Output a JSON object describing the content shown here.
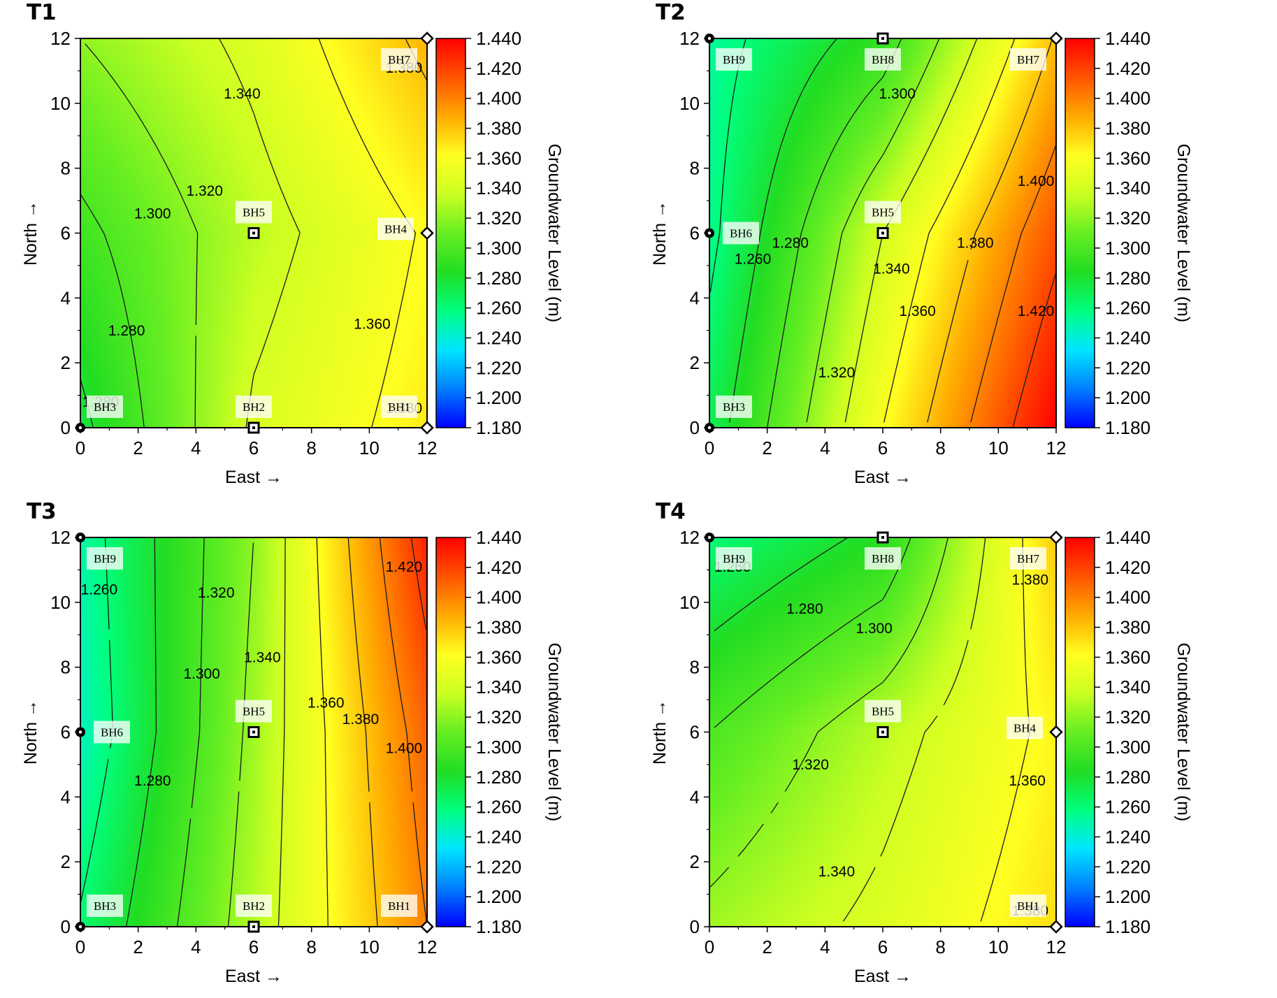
{
  "colors": {
    "scale": [
      "#0000ff",
      "#0080ff",
      "#00e5ff",
      "#00ff80",
      "#22dd22",
      "#66ee22",
      "#ccff22",
      "#ffff20",
      "#ffaa00",
      "#ff5500",
      "#ff0000"
    ],
    "contour_line": "#1a1a1a",
    "label_box": "#ffffff"
  },
  "chart_data": [
    {
      "panel": "T1",
      "type": "heatmap",
      "title": "T1",
      "xlabel": "East →",
      "ylabel": "North →",
      "colorbar_label": "Groundwater Level (m)",
      "xlim": [
        0,
        12
      ],
      "ylim": [
        0,
        12
      ],
      "clim": [
        1.18,
        1.44
      ],
      "x_ticks": [
        "0",
        "2",
        "4",
        "6",
        "8",
        "10",
        "12"
      ],
      "y_ticks": [
        "0",
        "2",
        "4",
        "6",
        "8",
        "10",
        "12"
      ],
      "colorbar_ticks": [
        "1.180",
        "1.200",
        "1.220",
        "1.240",
        "1.260",
        "1.280",
        "1.300",
        "1.320",
        "1.340",
        "1.360",
        "1.380",
        "1.400",
        "1.420",
        "1.440"
      ],
      "field_grid": [
        [
          1.275,
          1.343,
          1.368
        ],
        [
          1.295,
          1.332,
          1.362
        ],
        [
          1.32,
          1.345,
          1.385
        ]
      ],
      "boreholes": [
        {
          "name": "BH3",
          "x": 0,
          "y": 0,
          "marker": "circle",
          "level": 1.275
        },
        {
          "name": "BH2",
          "x": 6,
          "y": 0,
          "marker": "square",
          "level": 1.343
        },
        {
          "name": "BH1",
          "x": 12,
          "y": 0,
          "marker": "diamond",
          "level": 1.368
        },
        {
          "name": "BH5",
          "x": 6,
          "y": 6,
          "marker": "square",
          "level": 1.332
        },
        {
          "name": "BH4",
          "x": 12,
          "y": 6,
          "marker": "diamond",
          "level": 1.362
        },
        {
          "name": "BH7",
          "x": 12,
          "y": 12,
          "marker": "diamond",
          "level": 1.385
        }
      ],
      "contour_labels": [
        {
          "text": "1.280",
          "x": 1.6,
          "y": 3.0
        },
        {
          "text": "1.280",
          "x": 0.7,
          "y": 0.8
        },
        {
          "text": "1.300",
          "x": 2.5,
          "y": 6.6
        },
        {
          "text": "1.320",
          "x": 4.3,
          "y": 7.3
        },
        {
          "text": "1.340",
          "x": 5.6,
          "y": 10.3
        },
        {
          "text": "1.360",
          "x": 10.1,
          "y": 3.2
        },
        {
          "text": "1.380",
          "x": 11.2,
          "y": 11.1
        },
        {
          "text": "1.380",
          "x": 11.2,
          "y": 0.6
        }
      ]
    },
    {
      "panel": "T2",
      "type": "heatmap",
      "title": "T2",
      "xlabel": "East →",
      "ylabel": "North →",
      "colorbar_label": "Groundwater Level (m)",
      "xlim": [
        0,
        12
      ],
      "ylim": [
        0,
        12
      ],
      "clim": [
        1.18,
        1.44
      ],
      "x_ticks": [
        "0",
        "2",
        "4",
        "6",
        "8",
        "10",
        "12"
      ],
      "y_ticks": [
        "0",
        "2",
        "4",
        "6",
        "8",
        "10",
        "12"
      ],
      "colorbar_ticks": [
        "1.180",
        "1.200",
        "1.220",
        "1.240",
        "1.260",
        "1.280",
        "1.300",
        "1.320",
        "1.340",
        "1.360",
        "1.380",
        "1.400",
        "1.420",
        "1.440"
      ],
      "field_grid": [
        [
          1.27,
          1.36,
          1.44
        ],
        [
          1.255,
          1.34,
          1.415
        ],
        [
          1.252,
          1.29,
          1.382
        ]
      ],
      "boreholes": [
        {
          "name": "BH3",
          "x": 0,
          "y": 0,
          "marker": "circle",
          "level": 1.27
        },
        {
          "name": "BH6",
          "x": 0,
          "y": 6,
          "marker": "circle",
          "level": 1.255
        },
        {
          "name": "BH5",
          "x": 6,
          "y": 6,
          "marker": "square",
          "level": 1.34
        },
        {
          "name": "BH9",
          "x": 0,
          "y": 12,
          "marker": "circle",
          "level": 1.252
        },
        {
          "name": "BH8",
          "x": 6,
          "y": 12,
          "marker": "square",
          "level": 1.29
        },
        {
          "name": "BH7",
          "x": 12,
          "y": 12,
          "marker": "diamond",
          "level": 1.382
        }
      ],
      "contour_labels": [
        {
          "text": "1.260",
          "x": 1.5,
          "y": 5.2
        },
        {
          "text": "1.280",
          "x": 2.8,
          "y": 5.7
        },
        {
          "text": "1.300",
          "x": 6.5,
          "y": 10.3
        },
        {
          "text": "1.320",
          "x": 4.4,
          "y": 1.7
        },
        {
          "text": "1.340",
          "x": 6.3,
          "y": 4.9
        },
        {
          "text": "1.360",
          "x": 7.2,
          "y": 3.6
        },
        {
          "text": "1.380",
          "x": 9.2,
          "y": 5.7
        },
        {
          "text": "1.400",
          "x": 11.3,
          "y": 7.6
        },
        {
          "text": "1.420",
          "x": 11.3,
          "y": 3.6
        }
      ]
    },
    {
      "panel": "T3",
      "type": "heatmap",
      "title": "T3",
      "xlabel": "East →",
      "ylabel": "North →",
      "colorbar_label": "Groundwater Level (m)",
      "xlim": [
        0,
        12
      ],
      "ylim": [
        0,
        12
      ],
      "clim": [
        1.18,
        1.44
      ],
      "x_ticks": [
        "0",
        "2",
        "4",
        "6",
        "8",
        "10",
        "12"
      ],
      "y_ticks": [
        "0",
        "2",
        "4",
        "6",
        "8",
        "10",
        "12"
      ],
      "colorbar_ticks": [
        "1.180",
        "1.200",
        "1.220",
        "1.240",
        "1.260",
        "1.280",
        "1.300",
        "1.320",
        "1.340",
        "1.360",
        "1.380",
        "1.400",
        "1.420",
        "1.440"
      ],
      "field_grid": [
        [
          1.262,
          1.33,
          1.4
        ],
        [
          1.245,
          1.325,
          1.41
        ],
        [
          1.25,
          1.32,
          1.43
        ]
      ],
      "boreholes": [
        {
          "name": "BH3",
          "x": 0,
          "y": 0,
          "marker": "circle",
          "level": 1.262
        },
        {
          "name": "BH2",
          "x": 6,
          "y": 0,
          "marker": "square",
          "level": 1.33
        },
        {
          "name": "BH1",
          "x": 12,
          "y": 0,
          "marker": "diamond",
          "level": 1.4
        },
        {
          "name": "BH6",
          "x": 0,
          "y": 6,
          "marker": "circle",
          "level": 1.245
        },
        {
          "name": "BH5",
          "x": 6,
          "y": 6,
          "marker": "square",
          "level": 1.325
        },
        {
          "name": "BH9",
          "x": 0,
          "y": 12,
          "marker": "circle",
          "level": 1.25
        }
      ],
      "contour_labels": [
        {
          "text": "1.260",
          "x": 0.65,
          "y": 10.4
        },
        {
          "text": "1.280",
          "x": 2.5,
          "y": 4.5
        },
        {
          "text": "1.300",
          "x": 4.2,
          "y": 7.8
        },
        {
          "text": "1.320",
          "x": 4.7,
          "y": 10.3
        },
        {
          "text": "1.340",
          "x": 6.3,
          "y": 8.3
        },
        {
          "text": "1.360",
          "x": 8.5,
          "y": 6.9
        },
        {
          "text": "1.380",
          "x": 9.7,
          "y": 6.4
        },
        {
          "text": "1.400",
          "x": 11.2,
          "y": 5.5
        },
        {
          "text": "1.420",
          "x": 11.2,
          "y": 11.1
        }
      ]
    },
    {
      "panel": "T4",
      "type": "heatmap",
      "title": "T4",
      "xlabel": "East →",
      "ylabel": "North →",
      "colorbar_label": "Groundwater Level (m)",
      "xlim": [
        0,
        12
      ],
      "ylim": [
        0,
        12
      ],
      "clim": [
        1.18,
        1.44
      ],
      "x_ticks": [
        "0",
        "2",
        "4",
        "6",
        "8",
        "10",
        "12"
      ],
      "y_ticks": [
        "0",
        "2",
        "4",
        "6",
        "8",
        "10",
        "12"
      ],
      "colorbar_ticks": [
        "1.180",
        "1.200",
        "1.220",
        "1.240",
        "1.260",
        "1.280",
        "1.300",
        "1.320",
        "1.340",
        "1.360",
        "1.380",
        "1.400",
        "1.420",
        "1.440"
      ],
      "field_grid": [
        [
          1.325,
          1.345,
          1.372
        ],
        [
          1.3,
          1.332,
          1.365
        ],
        [
          1.26,
          1.285,
          1.378
        ]
      ],
      "boreholes": [
        {
          "name": "BH1",
          "x": 12,
          "y": 0,
          "marker": "diamond",
          "level": 1.372
        },
        {
          "name": "BH5",
          "x": 6,
          "y": 6,
          "marker": "square",
          "level": 1.332
        },
        {
          "name": "BH4",
          "x": 12,
          "y": 6,
          "marker": "diamond",
          "level": 1.365
        },
        {
          "name": "BH9",
          "x": 0,
          "y": 12,
          "marker": "circle",
          "level": 1.26
        },
        {
          "name": "BH8",
          "x": 6,
          "y": 12,
          "marker": "square",
          "level": 1.285
        },
        {
          "name": "BH7",
          "x": 12,
          "y": 12,
          "marker": "diamond",
          "level": 1.378
        }
      ],
      "contour_labels": [
        {
          "text": "1.260",
          "x": 0.8,
          "y": 11.1
        },
        {
          "text": "1.280",
          "x": 3.3,
          "y": 9.8
        },
        {
          "text": "1.300",
          "x": 5.7,
          "y": 9.2
        },
        {
          "text": "1.320",
          "x": 3.5,
          "y": 5.0
        },
        {
          "text": "1.340",
          "x": 4.4,
          "y": 1.7
        },
        {
          "text": "1.360",
          "x": 11.0,
          "y": 4.5
        },
        {
          "text": "1.380",
          "x": 11.1,
          "y": 10.7
        },
        {
          "text": "1.380",
          "x": 11.1,
          "y": 0.5
        }
      ]
    }
  ]
}
